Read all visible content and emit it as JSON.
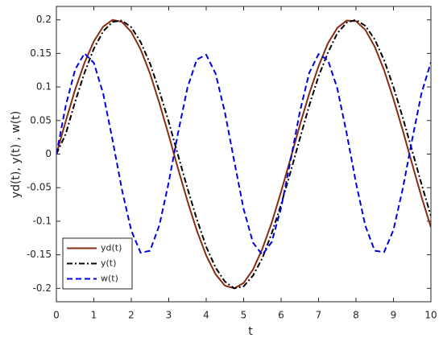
{
  "chart_data": {
    "type": "line",
    "xlabel": "t",
    "ylabel": "yd(t), y(t) , w(t)",
    "x": [
      0,
      0.25,
      0.5,
      0.75,
      1,
      1.25,
      1.5,
      1.75,
      2,
      2.25,
      2.5,
      2.75,
      3,
      3.25,
      3.5,
      3.75,
      4,
      4.25,
      4.5,
      4.75,
      5,
      5.25,
      5.5,
      5.75,
      6,
      6.25,
      6.5,
      6.75,
      7,
      7.25,
      7.5,
      7.75,
      8,
      8.25,
      8.5,
      8.75,
      9,
      9.25,
      9.5,
      9.75,
      10
    ],
    "series": [
      {
        "name": "yd(t)",
        "color": "#8b2a12",
        "style": "solid",
        "values": [
          0,
          0.049,
          0.096,
          0.136,
          0.168,
          0.19,
          0.2,
          0.197,
          0.182,
          0.156,
          0.12,
          0.076,
          0.028,
          -0.022,
          -0.07,
          -0.114,
          -0.151,
          -0.179,
          -0.196,
          -0.2,
          -0.192,
          -0.172,
          -0.141,
          -0.102,
          -0.056,
          -0.007,
          0.043,
          0.09,
          0.131,
          0.165,
          0.188,
          0.199,
          0.198,
          0.185,
          0.16,
          0.125,
          0.082,
          0.035,
          -0.015,
          -0.064,
          -0.109
        ]
      },
      {
        "name": "y(t)",
        "color": "#000000",
        "style": "dashdot",
        "values": [
          0,
          0.03,
          0.078,
          0.121,
          0.157,
          0.183,
          0.197,
          0.199,
          0.189,
          0.167,
          0.135,
          0.094,
          0.048,
          -0.002,
          -0.051,
          -0.097,
          -0.138,
          -0.169,
          -0.19,
          -0.2,
          -0.197,
          -0.181,
          -0.155,
          -0.118,
          -0.075,
          -0.027,
          0.023,
          0.072,
          0.116,
          0.151,
          0.18,
          0.196,
          0.2,
          0.191,
          0.171,
          0.14,
          0.1,
          0.054,
          0.005,
          -0.045,
          -0.092
        ]
      },
      {
        "name": "w(t)",
        "color": "#0000e6",
        "style": "dashed",
        "values": [
          0,
          0.072,
          0.126,
          0.15,
          0.136,
          0.09,
          0.021,
          -0.053,
          -0.114,
          -0.147,
          -0.144,
          -0.106,
          -0.042,
          0.032,
          0.099,
          0.141,
          0.148,
          0.12,
          0.062,
          -0.011,
          -0.082,
          -0.132,
          -0.15,
          -0.131,
          -0.08,
          -0.01,
          0.063,
          0.121,
          0.149,
          0.14,
          0.098,
          0.031,
          -0.043,
          -0.107,
          -0.144,
          -0.146,
          -0.113,
          -0.051,
          0.022,
          0.091,
          0.137
        ]
      }
    ],
    "xlim": [
      0,
      10
    ],
    "xticks": [
      0,
      1,
      2,
      3,
      4,
      5,
      6,
      7,
      8,
      9,
      10
    ],
    "ylim": [
      -0.22,
      0.22
    ],
    "yticks": [
      -0.2,
      -0.15,
      -0.1,
      -0.05,
      0,
      0.05,
      0.1,
      0.15,
      0.2
    ],
    "grid": false,
    "legend": "lower left"
  }
}
